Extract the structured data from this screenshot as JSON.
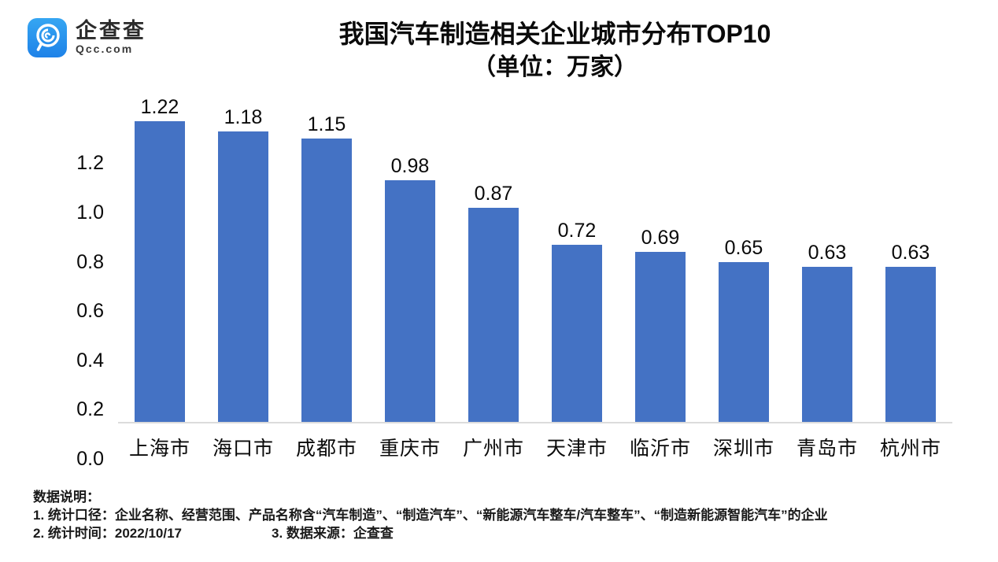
{
  "logo": {
    "name": "企查查",
    "domain": "Qcc.com",
    "icon": "qcc-magnifier-icon",
    "brand_color": "#1E8FE8"
  },
  "title": {
    "line1": "我国汽车制造相关企业城市分布TOP10",
    "line2": "（单位：万家）"
  },
  "chart_data": {
    "type": "bar",
    "title": "我国汽车制造相关企业城市分布TOP10",
    "subtitle": "（单位：万家）",
    "categories": [
      "上海市",
      "海口市",
      "成都市",
      "重庆市",
      "广州市",
      "天津市",
      "临沂市",
      "深圳市",
      "青岛市",
      "杭州市"
    ],
    "values": [
      1.22,
      1.18,
      1.15,
      0.98,
      0.87,
      0.72,
      0.69,
      0.65,
      0.63,
      0.63
    ],
    "value_labels": [
      "1.22",
      "1.18",
      "1.15",
      "0.98",
      "0.87",
      "0.72",
      "0.69",
      "0.65",
      "0.63",
      "0.63"
    ],
    "xlabel": "",
    "ylabel": "",
    "ylim": [
      0,
      1.3
    ],
    "yticks": [
      0.0,
      0.2,
      0.4,
      0.6,
      0.8,
      1.0,
      1.2
    ],
    "grid": false,
    "legend": "none",
    "bar_color": "#4472C4"
  },
  "footnotes": {
    "heading": "数据说明：",
    "line1": "1. 统计口径：企业名称、经营范围、产品名称含“汽车制造”、“制造汽车”、“新能源汽车整车/汽车整车”、“制造新能源智能汽车”的企业",
    "line2_left": "2. 统计时间：2022/10/17",
    "line2_right": "3. 数据来源：企查查"
  }
}
